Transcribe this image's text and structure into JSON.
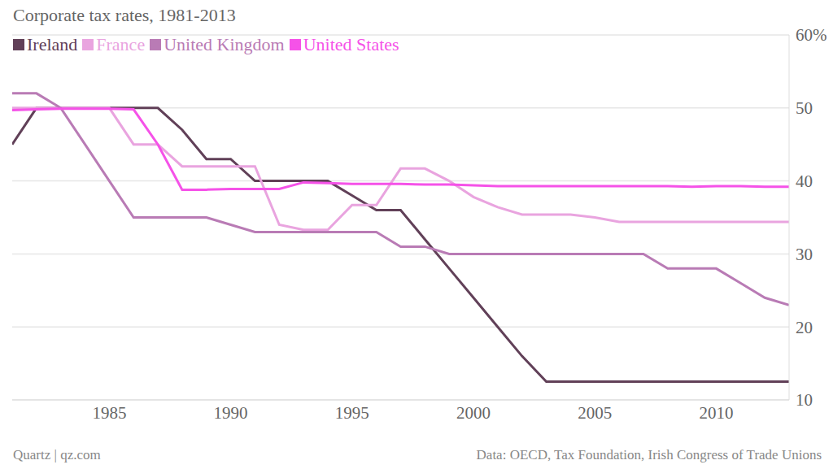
{
  "chart_data": {
    "type": "line",
    "title": "Corporate tax rates, 1981-2013",
    "credit": "Quartz | qz.com",
    "source": "Data: OECD, Tax Foundation, Irish Congress of Trade Unions",
    "x": [
      1981,
      1982,
      1983,
      1984,
      1985,
      1986,
      1987,
      1988,
      1989,
      1990,
      1991,
      1992,
      1993,
      1994,
      1995,
      1996,
      1997,
      1998,
      1999,
      2000,
      2001,
      2002,
      2003,
      2004,
      2005,
      2006,
      2007,
      2008,
      2009,
      2010,
      2011,
      2012,
      2013
    ],
    "series": [
      {
        "name": "Ireland",
        "color": "#614058",
        "values": [
          45,
          50,
          50,
          50,
          50,
          50,
          50,
          47,
          43,
          43,
          40,
          40,
          40,
          40,
          38,
          36,
          36,
          32,
          28,
          24,
          20,
          16,
          12.5,
          12.5,
          12.5,
          12.5,
          12.5,
          12.5,
          12.5,
          12.5,
          12.5,
          12.5,
          12.5
        ]
      },
      {
        "name": "France",
        "color": "#e9a4df",
        "values": [
          50,
          50,
          50,
          50,
          50,
          45,
          45,
          42,
          42,
          42,
          42,
          34,
          33.3,
          33.3,
          36.7,
          36.7,
          41.7,
          41.7,
          40,
          37.8,
          36.4,
          35.4,
          35.4,
          35.4,
          35,
          34.4,
          34.4,
          34.4,
          34.4,
          34.4,
          34.4,
          34.4,
          34.4
        ]
      },
      {
        "name": "United Kingdom",
        "color": "#b97bb5",
        "values": [
          52,
          52,
          50,
          45,
          40,
          35,
          35,
          35,
          35,
          34,
          33,
          33,
          33,
          33,
          33,
          33,
          31,
          31,
          30,
          30,
          30,
          30,
          30,
          30,
          30,
          30,
          30,
          28,
          28,
          28,
          26,
          24,
          23
        ]
      },
      {
        "name": "United States",
        "color": "#f552e8",
        "values": [
          49.7,
          49.8,
          49.9,
          49.9,
          49.9,
          49.8,
          45,
          38.8,
          38.8,
          38.9,
          38.9,
          38.9,
          39.8,
          39.7,
          39.6,
          39.6,
          39.6,
          39.5,
          39.5,
          39.4,
          39.3,
          39.3,
          39.3,
          39.3,
          39.3,
          39.3,
          39.3,
          39.3,
          39.2,
          39.3,
          39.3,
          39.2,
          39.2
        ]
      }
    ],
    "xlim": [
      1981,
      2013
    ],
    "xticks": [
      1985,
      1990,
      1995,
      2000,
      2005,
      2010
    ],
    "ylim": [
      10,
      60
    ],
    "yticks": [
      10,
      20,
      30,
      40,
      50,
      {
        "value": 60,
        "label": "60%"
      }
    ],
    "grid": true,
    "legend": "top-left"
  }
}
